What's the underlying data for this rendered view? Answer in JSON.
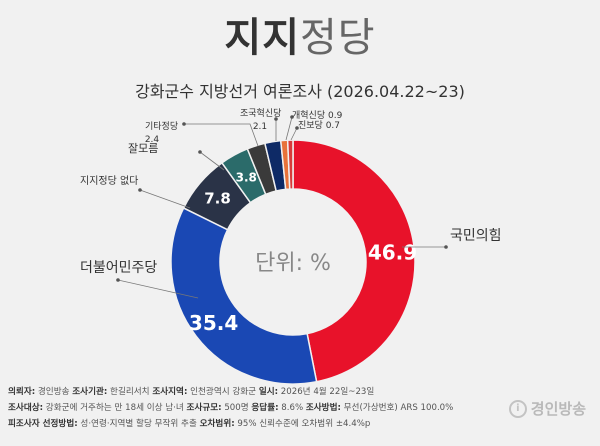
{
  "title": {
    "bold": "지지",
    "light": "정당"
  },
  "subtitle": "강화군수 지방선거 여론조사 (2026.04.22~23)",
  "center_label": "단위: %",
  "chart_data": {
    "type": "pie",
    "title": "지지정당",
    "categories": [
      "국민의힘",
      "더불어민주당",
      "지지정당 없다",
      "잘모름",
      "기타정당",
      "조국혁신당",
      "개혁신당",
      "진보당"
    ],
    "values": [
      46.9,
      35.4,
      7.8,
      3.8,
      2.4,
      2.1,
      0.9,
      0.7
    ],
    "colors": [
      "#e8122a",
      "#1a48b4",
      "#2a3347",
      "#2b6b6a",
      "#3a3a3a",
      "#0e2a66",
      "#e8723a",
      "#d83a3a"
    ],
    "unit": "%"
  },
  "slice_label_texts": [
    "46.9",
    "35.4",
    "7.8",
    "3.8"
  ],
  "outside_label_texts": [
    "국민의힘",
    "더불어민주당",
    "지지정당 없다",
    "잘모름",
    "기타정당",
    "2.4",
    "조국혁신당",
    "2.1",
    "개혁신당 0.9",
    "진보당 0.7"
  ],
  "footer": {
    "row1": [
      {
        "key": "의뢰자:",
        "val": "경인방송"
      },
      {
        "key": "조사기관:",
        "val": "한길리서치"
      },
      {
        "key": "조사지역:",
        "val": "인천광역시 강화군"
      },
      {
        "key": "일시:",
        "val": "2026년 4월 22일~23일"
      }
    ],
    "row2": [
      {
        "key": "조사대상:",
        "val": "강화군에 거주하는 만 18세 이상 남·녀"
      },
      {
        "key": "조사규모:",
        "val": "500명"
      },
      {
        "key": "응답률:",
        "val": "8.6%"
      },
      {
        "key": "조사방법:",
        "val": "무선(가상번호) ARS 100.0%"
      }
    ],
    "row3": [
      {
        "key": "피조사자 선정방법:",
        "val": "성·연령·지역별 할당 무작위 추출"
      },
      {
        "key": "오차범위:",
        "val": "95% 신뢰수준에 오차범위 ±4.4%p"
      }
    ]
  },
  "brand": {
    "name": "경인방송",
    "mark": "i"
  }
}
